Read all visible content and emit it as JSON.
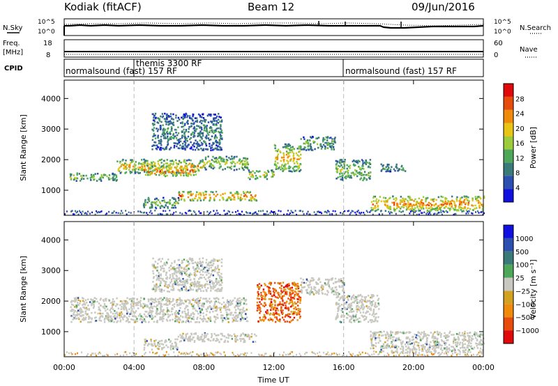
{
  "header": {
    "station": "Kodiak (fitACF)",
    "beam": "Beam 12",
    "date": "09/Jun/2016"
  },
  "left_labels": {
    "nsky": "N.Sky",
    "freq_line1": "Freq.",
    "freq_line2": "[MHz]",
    "cpid": "CPID"
  },
  "right_labels": {
    "nsearch": "N.Search",
    "nave": "Nave"
  },
  "small_panels": {
    "nsky_ticks": [
      "10^5",
      "10^0"
    ],
    "nsearch_ticks": [
      "10^5",
      "10^0"
    ],
    "freq_ticks": [
      "18",
      "8"
    ],
    "nave_ticks": [
      "60",
      "0"
    ]
  },
  "cpid_labels": [
    {
      "text": "normalsound (fast) 157 RF",
      "start": "00:00"
    },
    {
      "text": "themis 3300 RF",
      "start": "04:00"
    },
    {
      "text": "normalsound (fast) 157 RF",
      "start": "16:00"
    }
  ],
  "colors": {
    "power": [
      "#1010e0",
      "#2d4fb0",
      "#3a7a78",
      "#4ea85a",
      "#9ccc3a",
      "#e8c414",
      "#f08a0a",
      "#e84c0c",
      "#e00a0a"
    ],
    "velocity": [
      "#1010e0",
      "#2d4fb0",
      "#3a7a78",
      "#4ea85a",
      "#c8c8c0",
      "#d4a020",
      "#f08a0a",
      "#e84c0c",
      "#e00a0a"
    ],
    "scatter_grey": "#c8c8c0"
  },
  "chart_data": [
    {
      "type": "heatmap",
      "name": "power",
      "ylabel": "Slant Range [km]",
      "yticks": [
        1000,
        2000,
        3000,
        4000
      ],
      "ylim": [
        180,
        4600
      ],
      "xlim_hours": [
        0,
        24
      ],
      "colorbar_label": "Power [dB]",
      "colorbar_ticks": [
        "28",
        "24",
        "20",
        "16",
        "12",
        "8",
        "4"
      ],
      "bands": [
        {
          "t0": 0.3,
          "t1": 3.0,
          "r0": 1300,
          "r1": 1550,
          "level": 0.5
        },
        {
          "t0": 3.0,
          "t1": 8.0,
          "r0": 1550,
          "r1": 2000,
          "level": 0.7
        },
        {
          "t0": 4.5,
          "t1": 7.5,
          "r0": 1450,
          "r1": 1800,
          "level": 0.85
        },
        {
          "t0": 8.0,
          "t1": 10.5,
          "r0": 1650,
          "r1": 2100,
          "level": 0.55
        },
        {
          "t0": 10.5,
          "t1": 12.0,
          "r0": 1350,
          "r1": 1650,
          "level": 0.6
        },
        {
          "t0": 12.0,
          "t1": 13.5,
          "r0": 1600,
          "r1": 2500,
          "level": 0.7
        },
        {
          "t0": 6.5,
          "t1": 11.0,
          "r0": 650,
          "r1": 950,
          "level": 0.85
        },
        {
          "t0": 4.5,
          "t1": 6.5,
          "r0": 400,
          "r1": 750,
          "level": 0.45
        },
        {
          "t0": 13.5,
          "t1": 15.5,
          "r0": 2300,
          "r1": 2750,
          "level": 0.4
        },
        {
          "t0": 15.5,
          "t1": 17.5,
          "r0": 1300,
          "r1": 2000,
          "level": 0.5
        },
        {
          "t0": 18.0,
          "t1": 19.5,
          "r0": 1600,
          "r1": 1850,
          "level": 0.4
        },
        {
          "t0": 17.5,
          "t1": 24.0,
          "r0": 300,
          "r1": 800,
          "level": 0.8
        },
        {
          "t0": 5.0,
          "t1": 9.0,
          "r0": 2300,
          "r1": 3500,
          "level": 0.3
        }
      ]
    },
    {
      "type": "heatmap",
      "name": "velocity",
      "xlabel": "Time UT",
      "ylabel": "Slant Range [km]",
      "yticks": [
        1000,
        2000,
        3000,
        4000
      ],
      "ylim": [
        180,
        4600
      ],
      "xticks": [
        "00:00",
        "04:00",
        "08:00",
        "12:00",
        "16:00",
        "20:00",
        "00:00"
      ],
      "xlim_hours": [
        0,
        24
      ],
      "colorbar_label": "Velocity [m s⁻¹]",
      "colorbar_ticks": [
        "1000",
        "500",
        "100",
        "25",
        "−25",
        "−100",
        "−500",
        "−1000"
      ],
      "bands": [
        {
          "t0": 0.3,
          "t1": 10.5,
          "r0": 1300,
          "r1": 2100,
          "level": 0.45
        },
        {
          "t0": 6.5,
          "t1": 11.0,
          "r0": 650,
          "r1": 950,
          "level": 0.45
        },
        {
          "t0": 4.5,
          "t1": 6.5,
          "r0": 400,
          "r1": 750,
          "level": 0.45
        },
        {
          "t0": 11.0,
          "t1": 13.5,
          "r0": 1300,
          "r1": 2600,
          "level": 0.8
        },
        {
          "t0": 13.5,
          "t1": 16.0,
          "r0": 2200,
          "r1": 2750,
          "level": 0.45
        },
        {
          "t0": 15.5,
          "t1": 18.0,
          "r0": 1300,
          "r1": 2200,
          "level": 0.45
        },
        {
          "t0": 17.5,
          "t1": 24.0,
          "r0": 300,
          "r1": 1000,
          "level": 0.45
        },
        {
          "t0": 5.0,
          "t1": 9.0,
          "r0": 2300,
          "r1": 3400,
          "level": 0.45
        }
      ]
    }
  ]
}
